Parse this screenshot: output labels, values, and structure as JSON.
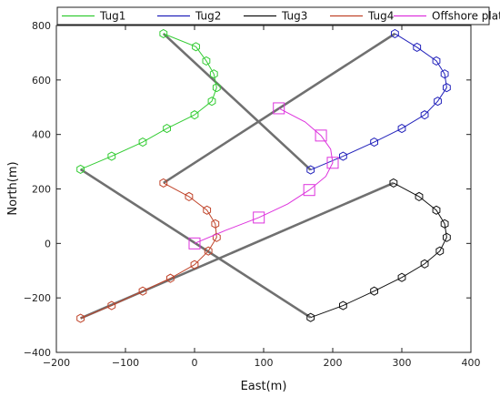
{
  "chart_data": {
    "type": "line",
    "title": "",
    "xlabel": "East(m)",
    "ylabel": "North(m)",
    "xlim": [
      -200,
      400
    ],
    "ylim": [
      -400,
      800
    ],
    "xticks": [
      -200,
      -100,
      0,
      100,
      200,
      300,
      400
    ],
    "yticks": [
      -400,
      -200,
      0,
      200,
      400,
      600,
      800
    ],
    "legend": {
      "placement": "top",
      "orientation": "horizontal"
    },
    "grid": false,
    "series": [
      {
        "name": "Tug1",
        "color": "#33cc33",
        "marker": "hexagon",
        "points": [
          [
            -45,
            770
          ],
          [
            2,
            722
          ],
          [
            17,
            670
          ],
          [
            28,
            622
          ],
          [
            32,
            572
          ],
          [
            25,
            522
          ],
          [
            0,
            472
          ],
          [
            -40,
            422
          ],
          [
            -75,
            372
          ],
          [
            -120,
            320
          ],
          [
            -165,
            272
          ]
        ]
      },
      {
        "name": "Tug2",
        "color": "#2222bb",
        "marker": "hexagon",
        "points": [
          [
            168,
            270
          ],
          [
            215,
            320
          ],
          [
            260,
            372
          ],
          [
            300,
            422
          ],
          [
            333,
            472
          ],
          [
            352,
            522
          ],
          [
            365,
            572
          ],
          [
            362,
            622
          ],
          [
            350,
            670
          ],
          [
            322,
            720
          ],
          [
            290,
            770
          ]
        ]
      },
      {
        "name": "Tug3",
        "color": "#111111",
        "marker": "hexagon",
        "points": [
          [
            288,
            222
          ],
          [
            325,
            172
          ],
          [
            350,
            122
          ],
          [
            362,
            72
          ],
          [
            365,
            22
          ],
          [
            355,
            -28
          ],
          [
            333,
            -75
          ],
          [
            300,
            -125
          ],
          [
            260,
            -175
          ],
          [
            215,
            -228
          ],
          [
            168,
            -272
          ]
        ]
      },
      {
        "name": "Tug4",
        "color": "#c0442a",
        "marker": "hexagon",
        "points": [
          [
            -45,
            222
          ],
          [
            -8,
            172
          ],
          [
            18,
            122
          ],
          [
            30,
            72
          ],
          [
            32,
            22
          ],
          [
            20,
            -28
          ],
          [
            0,
            -78
          ],
          [
            -35,
            -128
          ],
          [
            -75,
            -175
          ],
          [
            -120,
            -228
          ],
          [
            -165,
            -275
          ]
        ]
      },
      {
        "name": "Offshore platform",
        "color": "#dd33dd",
        "marker": "square",
        "points": [
          [
            0,
            0
          ],
          [
            93,
            95
          ],
          [
            166,
            196
          ],
          [
            200,
            296
          ],
          [
            183,
            396
          ],
          [
            122,
            496
          ]
        ],
        "line_points": [
          [
            0,
            0
          ],
          [
            45,
            48
          ],
          [
            93,
            95
          ],
          [
            135,
            145
          ],
          [
            166,
            196
          ],
          [
            190,
            246
          ],
          [
            200,
            296
          ],
          [
            197,
            346
          ],
          [
            183,
            396
          ],
          [
            160,
            446
          ],
          [
            122,
            496
          ]
        ]
      }
    ],
    "connecting_lines": {
      "color": "#707070",
      "segments": [
        [
          [
            -45,
            770
          ],
          [
            168,
            270
          ]
        ],
        [
          [
            -165,
            272
          ],
          [
            168,
            -272
          ]
        ],
        [
          [
            290,
            770
          ],
          [
            -45,
            222
          ]
        ],
        [
          [
            288,
            222
          ],
          [
            -165,
            -275
          ]
        ]
      ]
    }
  }
}
